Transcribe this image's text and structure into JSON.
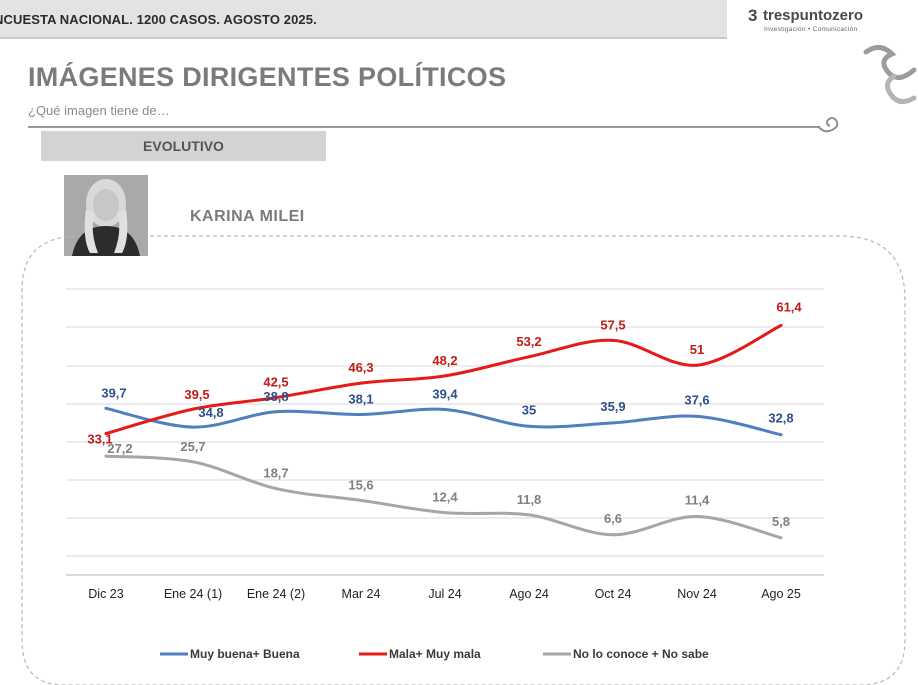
{
  "header": {
    "survey": "NCUESTA NACIONAL. 1200 CASOS. AGOSTO 2025.",
    "logo_name": "trespuntozero",
    "logo_tagline": "Investigación • Comunicación",
    "logo_mark": "3"
  },
  "title": "IMÁGENES DIRIGENTES POLÍTICOS",
  "subtitle": "¿Qué imagen tiene de…",
  "section_tab": "EVOLUTIVO",
  "person_name": "KARINA MILEI",
  "colors": {
    "blue": "#4f7fbf",
    "red": "#e41b17",
    "grey": "#a6a6a6",
    "blue_label": "#2e4f8a",
    "red_label": "#c11b17",
    "grey_label": "#808080"
  },
  "chart_data": {
    "type": "line",
    "categories": [
      "Dic 23",
      "Ene 24 (1)",
      "Ene 24 (2)",
      "Mar 24",
      "Jul 24",
      "Ago 24",
      "Oct 24",
      "Nov 24",
      "Ago 25"
    ],
    "series": [
      {
        "name": "Muy buena+ Buena",
        "color": "#4f7fbf",
        "values": [
          39.7,
          34.8,
          38.8,
          38.1,
          39.4,
          35,
          35.9,
          37.6,
          32.8
        ],
        "labels": [
          "39,7",
          "34,8",
          "38,8",
          "38,1",
          "39,4",
          "35",
          "35,9",
          "37,6",
          "32,8"
        ]
      },
      {
        "name": "Mala+ Muy mala",
        "color": "#e41b17",
        "values": [
          33.1,
          39.5,
          42.5,
          46.3,
          48.2,
          53.2,
          57.5,
          51,
          61.4
        ],
        "labels": [
          "33,1",
          "39,5",
          "42,5",
          "46,3",
          "48,2",
          "53,2",
          "57,5",
          "51",
          "61,4"
        ]
      },
      {
        "name": "No lo conoce + No sabe",
        "color": "#a6a6a6",
        "values": [
          27.2,
          25.7,
          18.7,
          15.6,
          12.4,
          11.8,
          6.6,
          11.4,
          5.8
        ],
        "labels": [
          "27,2",
          "25,7",
          "18,7",
          "15,6",
          "12,4",
          "11,8",
          "6,6",
          "11,4",
          "5,8"
        ]
      }
    ],
    "ylim": [
      0,
      70
    ],
    "grid": true,
    "legend": "bottom"
  }
}
